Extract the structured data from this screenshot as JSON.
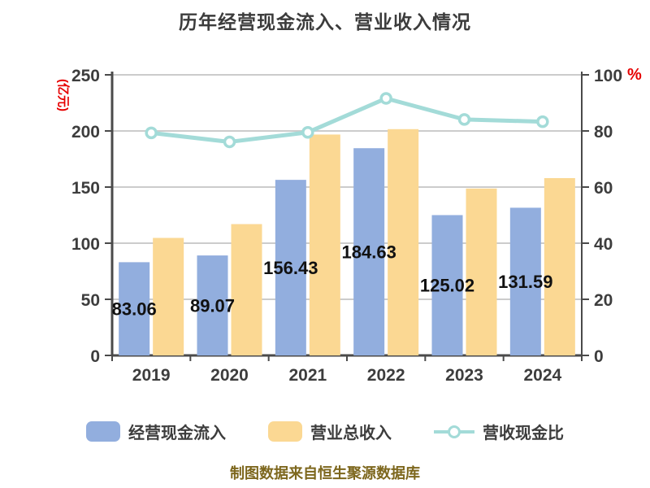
{
  "caption": "制图数据来自恒生聚源数据库",
  "colors": {
    "title_text": "#3c3c3c",
    "axis_text": "#3d3d3d",
    "axis_line": "#4a4a4a",
    "grid_line": "#cccccc",
    "bar_label_text": "#111111",
    "unit_text": "#e60000",
    "caption_text": "#7d671d",
    "bar_blue": "#92aede",
    "bar_yellow": "#fbd893",
    "line_teal": "#a3dbd8"
  },
  "chart_data": {
    "type": "bar+line",
    "title": "历年经营现金流入、营业收入情况",
    "categories": [
      "2019",
      "2020",
      "2021",
      "2022",
      "2023",
      "2024"
    ],
    "series": [
      {
        "name": "经营现金流入",
        "type": "bar",
        "axis": "left",
        "color": "#92aede",
        "values": [
          83.06,
          89.07,
          156.43,
          184.63,
          125.02,
          131.59
        ],
        "labels": [
          "83.06",
          "89.07",
          "156.43",
          "184.63",
          "125.02",
          "131.59"
        ]
      },
      {
        "name": "营业总收入",
        "type": "bar",
        "axis": "left",
        "color": "#fbd893",
        "values": [
          104.7,
          117.0,
          196.8,
          201.6,
          148.7,
          158.0
        ]
      },
      {
        "name": "营收现金比",
        "type": "line",
        "axis": "right",
        "color": "#a3dbd8",
        "marker": "circle",
        "values": [
          79.3,
          76.1,
          79.5,
          91.6,
          84.1,
          83.3
        ]
      }
    ],
    "left_axis": {
      "unit": "(亿元)",
      "min": 0,
      "max": 250,
      "ticks": [
        "0",
        "50",
        "100",
        "150",
        "200",
        "250"
      ]
    },
    "right_axis": {
      "unit": "%",
      "min": 0,
      "max": 100,
      "ticks": [
        "0",
        "20",
        "40",
        "60",
        "80",
        "100"
      ]
    },
    "grid": true,
    "legend_position": "bottom"
  }
}
